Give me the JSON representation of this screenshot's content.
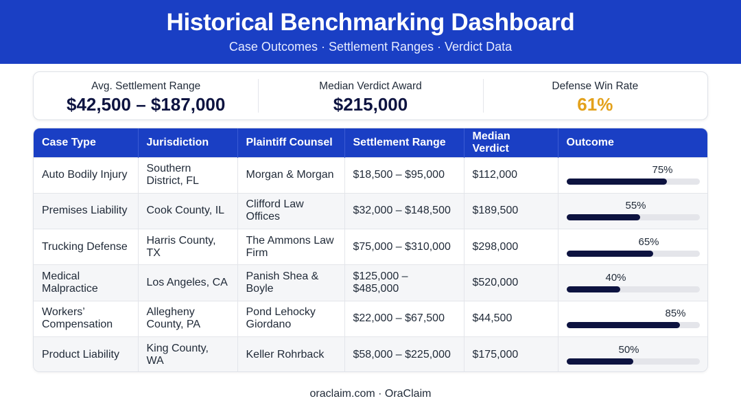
{
  "header": {
    "title": "Historical Benchmarking Dashboard",
    "subtitle": "Case Outcomes · Settlement Ranges · Verdict Data"
  },
  "kpis": [
    {
      "label": "Avg. Settlement Range",
      "value": "$42,500 – $187,000"
    },
    {
      "label": "Median Verdict Award",
      "value": "$215,000"
    },
    {
      "label": "Defense Win Rate",
      "value": "61%"
    }
  ],
  "colors": {
    "brand_blue": "#1a3fc4",
    "navy": "#0d1340",
    "gold_accent": "#e3a11b",
    "bar_track": "#e4e5ea"
  },
  "table": {
    "columns": [
      "Case Type",
      "Jurisdiction",
      "Plaintiff Counsel",
      "Settlement Range",
      "Median Verdict",
      "Outcome"
    ],
    "rows": [
      {
        "case_type": "Auto Bodily Injury",
        "jurisdiction": "Southern District, FL",
        "counsel": "Morgan & Morgan",
        "settlement": "$18,500 – $95,000",
        "verdict": "$112,000",
        "outcome_label": "75%",
        "outcome": 0.75
      },
      {
        "case_type": "Premises Liability",
        "jurisdiction": "Cook County, IL",
        "counsel": "Clifford Law Offices",
        "settlement": "$32,000 – $148,500",
        "verdict": "$189,500",
        "outcome_label": "55%",
        "outcome": 0.55
      },
      {
        "case_type": "Trucking Defense",
        "jurisdiction": "Harris County, TX",
        "counsel": "The Ammons Law Firm",
        "settlement": "$75,000 – $310,000",
        "verdict": "$298,000",
        "outcome_label": "65%",
        "outcome": 0.65
      },
      {
        "case_type": "Medical Malpractice",
        "jurisdiction": "Los Angeles, CA",
        "counsel": "Panish Shea & Boyle",
        "settlement": "$125,000 – $485,000",
        "verdict": "$520,000",
        "outcome_label": "40%",
        "outcome": 0.4
      },
      {
        "case_type": "Workers’ Compensation",
        "jurisdiction": "Allegheny County, PA",
        "counsel": "Pond Lehocky Giordano",
        "settlement": "$22,000 – $67,500",
        "verdict": "$44,500",
        "outcome_label": "85%",
        "outcome": 0.85
      },
      {
        "case_type": "Product Liability",
        "jurisdiction": "King County, WA",
        "counsel": "Keller Rohrback",
        "settlement": "$58,000 – $225,000",
        "verdict": "$175,000",
        "outcome_label": "50%",
        "outcome": 0.5
      }
    ]
  },
  "footer": {
    "text": "oraclaim.com · OraClaim"
  }
}
